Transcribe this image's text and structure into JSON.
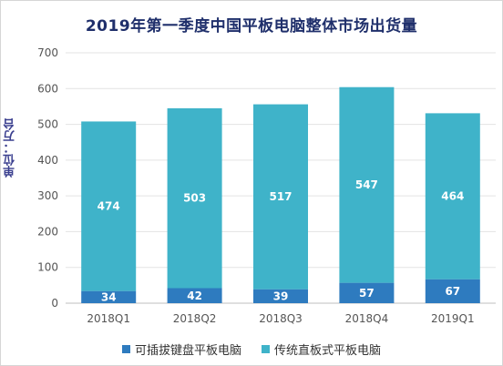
{
  "chart_data": {
    "type": "bar",
    "stacked": true,
    "title": "2019年第一季度中国平板电脑整体市场出货量",
    "ylabel": "单位：万台",
    "xlabel": "",
    "categories": [
      "2018Q1",
      "2018Q2",
      "2018Q3",
      "2018Q4",
      "2019Q1"
    ],
    "series": [
      {
        "name": "可插拔键盘平板电脑",
        "color": "#2e7bbf",
        "values": [
          34,
          42,
          39,
          57,
          67
        ]
      },
      {
        "name": "传统直板式平板电脑",
        "color": "#3fb3c9",
        "values": [
          474,
          503,
          517,
          547,
          464
        ]
      }
    ],
    "ylim": [
      0,
      700
    ],
    "yticks": [
      0,
      100,
      200,
      300,
      400,
      500,
      600,
      700
    ],
    "grid": true,
    "legend": "bottom"
  }
}
